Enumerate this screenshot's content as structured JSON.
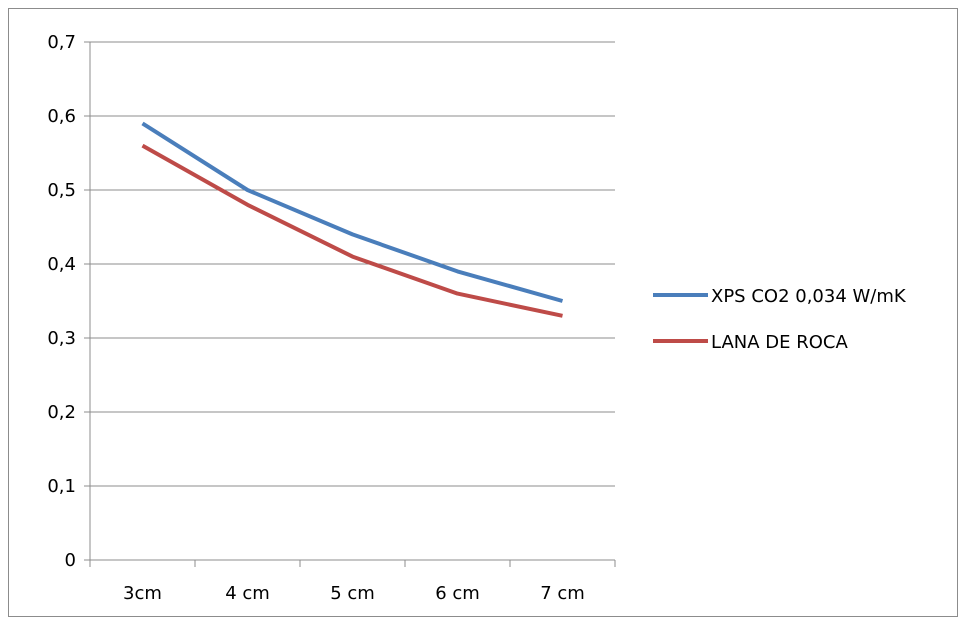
{
  "chart_data": {
    "type": "line",
    "title": "",
    "xlabel": "",
    "ylabel": "",
    "categories": [
      "3cm",
      "4 cm",
      "5 cm",
      "6 cm",
      "7 cm"
    ],
    "ylim": [
      0,
      0.7
    ],
    "yticks": [
      0,
      0.1,
      0.2,
      0.3,
      0.4,
      0.5,
      0.6,
      0.7
    ],
    "ytick_labels": [
      "0",
      "0,1",
      "0,2",
      "0,3",
      "0,4",
      "0,5",
      "0,6",
      "0,7"
    ],
    "grid": "horizontal",
    "legend_position": "right",
    "series": [
      {
        "name": "XPS CO2 0,034 W/mK",
        "color": "#4a7ebb",
        "values": [
          0.59,
          0.5,
          0.44,
          0.39,
          0.35
        ]
      },
      {
        "name": "LANA DE ROCA",
        "color": "#be4b48",
        "values": [
          0.56,
          0.48,
          0.41,
          0.36,
          0.33
        ]
      }
    ]
  }
}
